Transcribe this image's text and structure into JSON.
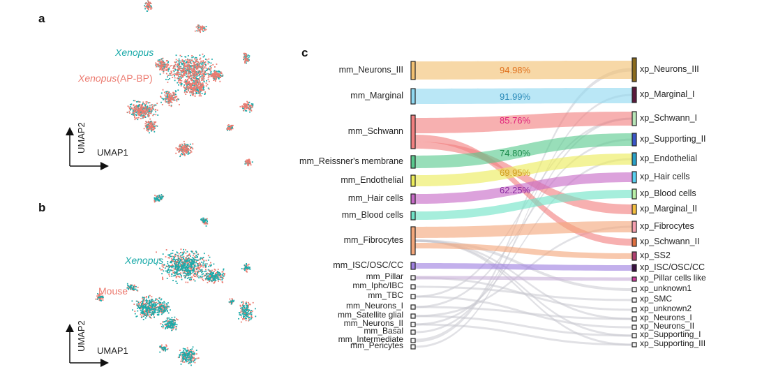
{
  "panels": {
    "a": "a",
    "b": "b",
    "c": "c"
  },
  "colors": {
    "xenopus": "#1aaaa9",
    "other": "#ec7a6f"
  },
  "umap_a": {
    "label_xenopus": "Xenopus",
    "label_xenopus_apbp_italic": "Xenopus",
    "label_xenopus_apbp_rest": "(AP-BP)",
    "x_axis": "UMAP1",
    "y_axis": "UMAP2"
  },
  "umap_b": {
    "label_xenopus": "Xenopus",
    "label_mouse": "Mouse",
    "x_axis": "UMAP1",
    "y_axis": "UMAP2"
  },
  "sankey": {
    "left_nodes": [
      {
        "label": "mm_Neurons_III",
        "color": "#f2c071"
      },
      {
        "label": "mm_Marginal",
        "color": "#8fd8f0"
      },
      {
        "label": "mm_Schwann",
        "color": "#f28080"
      },
      {
        "label": "mm_Reissner's membrane",
        "color": "#59c98e"
      },
      {
        "label": "mm_Endothelial",
        "color": "#ecec58"
      },
      {
        "label": "mm_Hair cells",
        "color": "#c669c6"
      },
      {
        "label": "mm_Blood cells",
        "color": "#6fe3c7"
      },
      {
        "label": "mm_Fibrocytes",
        "color": "#f4a77a"
      },
      {
        "label": "mm_ISC/OSC/CC",
        "color": "#9e7fe0"
      },
      {
        "label": "mm_Pillar",
        "color": "#f5f5f5"
      },
      {
        "label": "mm_Iphc/IBC",
        "color": "#f5f5f5"
      },
      {
        "label": "mm_TBC",
        "color": "#f5f5f5"
      },
      {
        "label": "mm_Neurons_I",
        "color": "#f5f5f5"
      },
      {
        "label": "mm_Satellite glial",
        "color": "#f5f5f5"
      },
      {
        "label": "mm_Neurons_II",
        "color": "#f5f5f5"
      },
      {
        "label": "mm_Basal",
        "color": "#f5f5f5"
      },
      {
        "label": "mm_Intermediate",
        "color": "#f5f5f5"
      },
      {
        "label": "mm_Pericytes",
        "color": "#f5f5f5"
      }
    ],
    "right_nodes": [
      {
        "label": "xp_Neurons_III",
        "color": "#8a6a1c"
      },
      {
        "label": "xp_Marginal_I",
        "color": "#5a1a3c"
      },
      {
        "label": "xp_Schwann_I",
        "color": "#b8e6b8"
      },
      {
        "label": "xp_Supporting_II",
        "color": "#3a56c8"
      },
      {
        "label": "xp_Endothelial",
        "color": "#2aa0c8"
      },
      {
        "label": "xp_Hair cells",
        "color": "#5ad0f0"
      },
      {
        "label": "xp_Blood cells",
        "color": "#b8f0a8"
      },
      {
        "label": "xp_Marginal_II",
        "color": "#f4c040"
      },
      {
        "label": "xp_Fibrocytes",
        "color": "#f5a0b0"
      },
      {
        "label": "xp_Schwann_II",
        "color": "#e07040"
      },
      {
        "label": "xp_SS2",
        "color": "#b04070"
      },
      {
        "label": "xp_ISC/OSC/CC",
        "color": "#3a1040"
      },
      {
        "label": "xp_Pillar cells like",
        "color": "#d040a0"
      },
      {
        "label": "xp_unknown1",
        "color": "#f5f5f5"
      },
      {
        "label": "xp_SMC",
        "color": "#f5f5f5"
      },
      {
        "label": "xp_unknown2",
        "color": "#f5f5f5"
      },
      {
        "label": "xp_Neurons_I",
        "color": "#f5f5f5"
      },
      {
        "label": "xp_Neurons_II",
        "color": "#f5f5f5"
      },
      {
        "label": "xp_Supporting_I",
        "color": "#f5f5f5"
      },
      {
        "label": "xp_Supporting_III",
        "color": "#f5f5f5"
      }
    ],
    "flows": [
      {
        "from": 0,
        "to": 0,
        "color": "#f2c071",
        "pct": "94.98%",
        "pct_color": "#e0701c"
      },
      {
        "from": 1,
        "to": 1,
        "color": "#8fd8f0",
        "pct": "91.99%",
        "pct_color": "#2a8ab8"
      },
      {
        "from": 2,
        "to": 2,
        "color": "#f28080",
        "pct": "85.76%",
        "pct_color": "#e0207a"
      },
      {
        "from": 2,
        "to": 9,
        "color": "#f28080",
        "pct": "",
        "pct_color": ""
      },
      {
        "from": 2,
        "to": 7,
        "color": "#f28080",
        "pct": "",
        "pct_color": ""
      },
      {
        "from": 3,
        "to": 3,
        "color": "#59c98e",
        "pct": "74.80%",
        "pct_color": "#1a8a4a"
      },
      {
        "from": 4,
        "to": 4,
        "color": "#ecec58",
        "pct": "69.95%",
        "pct_color": "#d0a020"
      },
      {
        "from": 5,
        "to": 5,
        "color": "#c669c6",
        "pct": "62.25%",
        "pct_color": "#8a2aa0"
      },
      {
        "from": 6,
        "to": 6,
        "color": "#6fe3c7",
        "pct": "",
        "pct_color": ""
      },
      {
        "from": 7,
        "to": 8,
        "color": "#f4a77a",
        "pct": "",
        "pct_color": ""
      },
      {
        "from": 7,
        "to": 10,
        "color": "#f4a77a",
        "pct": "",
        "pct_color": ""
      },
      {
        "from": 8,
        "to": 11,
        "color": "#9e7fe0",
        "pct": "",
        "pct_color": ""
      },
      {
        "from": 9,
        "to": 12,
        "color": "#c8b0d8",
        "pct": "",
        "pct_color": ""
      }
    ]
  }
}
